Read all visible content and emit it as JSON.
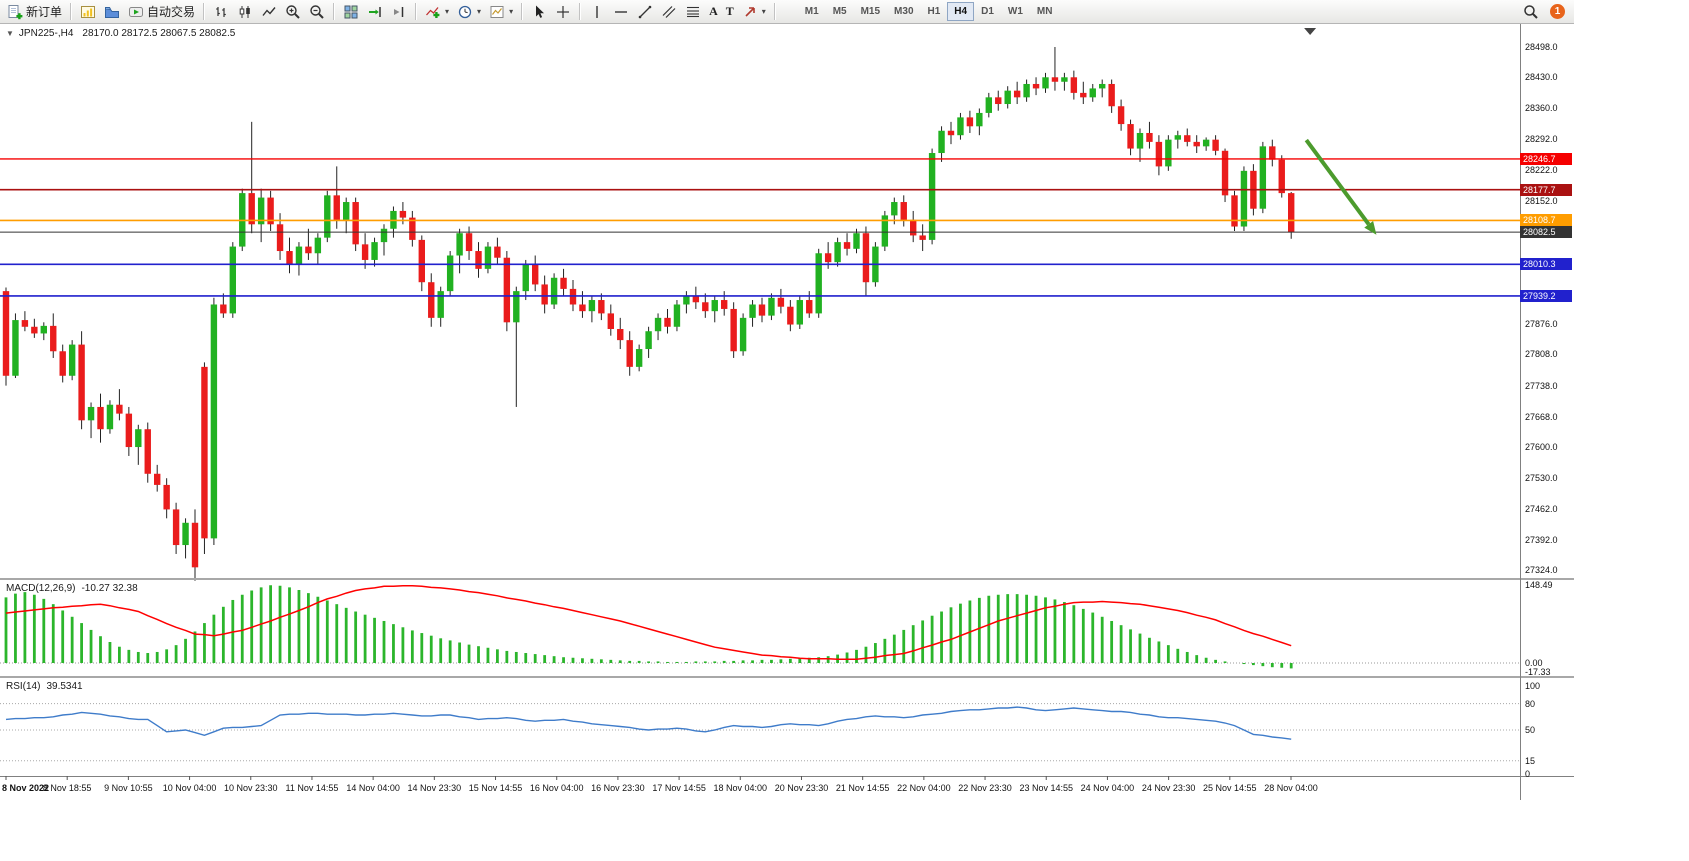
{
  "toolbar": {
    "new_order": "新订单",
    "autotrading": "自动交易",
    "text_tool": "A",
    "text_label_tool": "T",
    "timeframes": [
      "M1",
      "M5",
      "M15",
      "M30",
      "H1",
      "H4",
      "D1",
      "W1",
      "MN"
    ],
    "active_timeframe": "H4",
    "badge": "1",
    "badge_color": "#e8641b"
  },
  "icons": {
    "dropdown": "▾",
    "collapse": "▼"
  },
  "chart_header": {
    "symbol": "JPN225-,H4",
    "ohlc": "28170.0 28172.5 28067.5 28082.5"
  },
  "chart_data": {
    "type": "candlestick",
    "symbol": "JPN225-",
    "timeframe": "H4",
    "ohlc_current": {
      "open": 28170.0,
      "high": 28172.5,
      "low": 28067.5,
      "close": 28082.5
    },
    "price_axis": {
      "min": 27324,
      "max": 28498,
      "ticks": [
        "28498.0",
        "28430.0",
        "28360.0",
        "28292.0",
        "28222.0",
        "28152.0",
        "28082.0",
        "28012.0",
        "27944.0",
        "27876.0",
        "27808.0",
        "27738.0",
        "27668.0",
        "27600.0",
        "27530.0",
        "27462.0",
        "27392.0",
        "27324.0"
      ]
    },
    "time_labels": [
      "8 Nov 2022",
      "8 Nov 18:55",
      "9 Nov 10:55",
      "10 Nov 04:00",
      "10 Nov 23:30",
      "11 Nov 14:55",
      "14 Nov 04:00",
      "14 Nov 23:30",
      "15 Nov 14:55",
      "16 Nov 04:00",
      "16 Nov 23:30",
      "17 Nov 14:55",
      "18 Nov 04:00",
      "20 Nov 23:30",
      "21 Nov 14:55",
      "22 Nov 04:00",
      "22 Nov 23:30",
      "23 Nov 14:55",
      "24 Nov 04:00",
      "24 Nov 23:30",
      "25 Nov 14:55",
      "28 Nov 04:00"
    ],
    "levels": [
      {
        "price": 28246.7,
        "label": "28246.7",
        "color": "#f50000",
        "width": 1.4
      },
      {
        "price": 28177.7,
        "label": "28177.7",
        "color": "#aa1111",
        "width": 1.6
      },
      {
        "price": 28108.7,
        "label": "28108.7",
        "color": "#ff9d00",
        "width": 1.6
      },
      {
        "price": 28082.5,
        "label": "28082.5",
        "color": "#333333",
        "width": 1
      },
      {
        "price": 28010.3,
        "label": "28010.3",
        "color": "#2121cd",
        "width": 1.6
      },
      {
        "price": 27939.2,
        "label": "27939.2",
        "color": "#2121cd",
        "width": 1.6
      }
    ],
    "candles": [
      [
        27950,
        27958,
        27738,
        27760
      ],
      [
        27760,
        27900,
        27755,
        27885
      ],
      [
        27885,
        27905,
        27860,
        27870
      ],
      [
        27870,
        27888,
        27845,
        27855
      ],
      [
        27855,
        27880,
        27840,
        27872
      ],
      [
        27872,
        27900,
        27800,
        27815
      ],
      [
        27815,
        27830,
        27745,
        27760
      ],
      [
        27760,
        27840,
        27750,
        27830
      ],
      [
        27830,
        27860,
        27640,
        27660
      ],
      [
        27660,
        27700,
        27620,
        27690
      ],
      [
        27690,
        27720,
        27610,
        27640
      ],
      [
        27640,
        27705,
        27630,
        27695
      ],
      [
        27695,
        27730,
        27660,
        27675
      ],
      [
        27675,
        27690,
        27580,
        27600
      ],
      [
        27600,
        27650,
        27560,
        27640
      ],
      [
        27640,
        27655,
        27520,
        27540
      ],
      [
        27540,
        27560,
        27500,
        27515
      ],
      [
        27515,
        27530,
        27440,
        27460
      ],
      [
        27460,
        27475,
        27360,
        27380
      ],
      [
        27380,
        27440,
        27350,
        27430
      ],
      [
        27430,
        27460,
        27300,
        27330
      ],
      [
        27780,
        27790,
        27360,
        27395
      ],
      [
        27395,
        27935,
        27380,
        27920
      ],
      [
        27920,
        27945,
        27890,
        27900
      ],
      [
        27900,
        28060,
        27890,
        28050
      ],
      [
        28050,
        28180,
        28040,
        28170
      ],
      [
        28170,
        28330,
        28080,
        28100
      ],
      [
        28100,
        28180,
        28060,
        28160
      ],
      [
        28160,
        28175,
        28085,
        28100
      ],
      [
        28100,
        28125,
        28020,
        28040
      ],
      [
        28040,
        28070,
        27990,
        28010
      ],
      [
        28010,
        28060,
        27985,
        28050
      ],
      [
        28050,
        28090,
        28020,
        28035
      ],
      [
        28035,
        28080,
        28010,
        28070
      ],
      [
        28070,
        28175,
        28060,
        28165
      ],
      [
        28165,
        28230,
        28090,
        28110
      ],
      [
        28110,
        28160,
        28080,
        28150
      ],
      [
        28150,
        28160,
        28040,
        28055
      ],
      [
        28055,
        28080,
        28000,
        28020
      ],
      [
        28020,
        28070,
        28005,
        28060
      ],
      [
        28060,
        28100,
        28030,
        28090
      ],
      [
        28090,
        28140,
        28070,
        28130
      ],
      [
        28130,
        28150,
        28100,
        28115
      ],
      [
        28115,
        28130,
        28050,
        28065
      ],
      [
        28065,
        28075,
        27950,
        27970
      ],
      [
        27970,
        27990,
        27870,
        27890
      ],
      [
        27890,
        27960,
        27870,
        27950
      ],
      [
        27950,
        28040,
        27940,
        28030
      ],
      [
        28030,
        28090,
        27990,
        28080
      ],
      [
        28080,
        28095,
        28020,
        28040
      ],
      [
        28040,
        28060,
        27980,
        28000
      ],
      [
        28000,
        28060,
        27990,
        28050
      ],
      [
        28050,
        28070,
        28010,
        28025
      ],
      [
        28025,
        28040,
        27860,
        27880
      ],
      [
        27880,
        27960,
        27690,
        27950
      ],
      [
        27950,
        28020,
        27930,
        28010
      ],
      [
        28010,
        28030,
        27950,
        27965
      ],
      [
        27965,
        27985,
        27900,
        27920
      ],
      [
        27920,
        27990,
        27910,
        27980
      ],
      [
        27980,
        28000,
        27940,
        27955
      ],
      [
        27955,
        27975,
        27905,
        27920
      ],
      [
        27920,
        27950,
        27890,
        27905
      ],
      [
        27905,
        27940,
        27880,
        27930
      ],
      [
        27930,
        27945,
        27885,
        27900
      ],
      [
        27900,
        27920,
        27850,
        27865
      ],
      [
        27865,
        27890,
        27820,
        27840
      ],
      [
        27840,
        27860,
        27760,
        27780
      ],
      [
        27780,
        27830,
        27770,
        27820
      ],
      [
        27820,
        27870,
        27800,
        27860
      ],
      [
        27860,
        27900,
        27840,
        27890
      ],
      [
        27890,
        27910,
        27855,
        27870
      ],
      [
        27870,
        27930,
        27860,
        27920
      ],
      [
        27920,
        27950,
        27900,
        27940
      ],
      [
        27940,
        27960,
        27910,
        27925
      ],
      [
        27925,
        27945,
        27890,
        27905
      ],
      [
        27905,
        27940,
        27880,
        27930
      ],
      [
        27930,
        27950,
        27895,
        27910
      ],
      [
        27910,
        27925,
        27800,
        27815
      ],
      [
        27815,
        27900,
        27805,
        27890
      ],
      [
        27890,
        27930,
        27870,
        27920
      ],
      [
        27920,
        27935,
        27880,
        27895
      ],
      [
        27895,
        27945,
        27885,
        27935
      ],
      [
        27935,
        27955,
        27900,
        27915
      ],
      [
        27915,
        27930,
        27860,
        27875
      ],
      [
        27875,
        27940,
        27865,
        27930
      ],
      [
        27930,
        27950,
        27890,
        27900
      ],
      [
        27900,
        28045,
        27890,
        28035
      ],
      [
        28035,
        28060,
        28000,
        28015
      ],
      [
        28015,
        28070,
        28005,
        28060
      ],
      [
        28060,
        28080,
        28030,
        28045
      ],
      [
        28045,
        28090,
        28035,
        28080
      ],
      [
        28080,
        28095,
        27940,
        27970
      ],
      [
        27970,
        28060,
        27960,
        28050
      ],
      [
        28050,
        28130,
        28040,
        28120
      ],
      [
        28120,
        28160,
        28100,
        28150
      ],
      [
        28150,
        28165,
        28095,
        28110
      ],
      [
        28110,
        28130,
        28060,
        28075
      ],
      [
        28075,
        28100,
        28040,
        28065
      ],
      [
        28065,
        28270,
        28055,
        28260
      ],
      [
        28260,
        28320,
        28240,
        28310
      ],
      [
        28310,
        28330,
        28280,
        28300
      ],
      [
        28300,
        28350,
        28290,
        28340
      ],
      [
        28340,
        28355,
        28305,
        28320
      ],
      [
        28320,
        28360,
        28300,
        28350
      ],
      [
        28350,
        28395,
        28340,
        28385
      ],
      [
        28385,
        28400,
        28355,
        28370
      ],
      [
        28370,
        28410,
        28360,
        28400
      ],
      [
        28400,
        28420,
        28370,
        28385
      ],
      [
        28385,
        28425,
        28375,
        28415
      ],
      [
        28415,
        28430,
        28390,
        28405
      ],
      [
        28405,
        28440,
        28395,
        28430
      ],
      [
        28430,
        28498,
        28400,
        28420
      ],
      [
        28420,
        28440,
        28400,
        28430
      ],
      [
        28430,
        28445,
        28380,
        28395
      ],
      [
        28395,
        28420,
        28370,
        28385
      ],
      [
        28385,
        28415,
        28375,
        28405
      ],
      [
        28405,
        28425,
        28385,
        28415
      ],
      [
        28415,
        28425,
        28350,
        28365
      ],
      [
        28365,
        28380,
        28310,
        28325
      ],
      [
        28325,
        28335,
        28255,
        28270
      ],
      [
        28270,
        28315,
        28240,
        28305
      ],
      [
        28305,
        28330,
        28270,
        28285
      ],
      [
        28285,
        28300,
        28210,
        28230
      ],
      [
        28230,
        28300,
        28220,
        28290
      ],
      [
        28290,
        28310,
        28270,
        28300
      ],
      [
        28300,
        28315,
        28275,
        28285
      ],
      [
        28285,
        28300,
        28260,
        28275
      ],
      [
        28275,
        28295,
        28265,
        28290
      ],
      [
        28290,
        28300,
        28255,
        28265
      ],
      [
        28265,
        28270,
        28150,
        28165
      ],
      [
        28165,
        28175,
        28085,
        28095
      ],
      [
        28095,
        28230,
        28085,
        28220
      ],
      [
        28220,
        28235,
        28120,
        28135
      ],
      [
        28135,
        28285,
        28125,
        28275
      ],
      [
        28275,
        28290,
        28230,
        28245
      ],
      [
        28245,
        28255,
        28160,
        28170
      ],
      [
        28170,
        28172.5,
        28067.5,
        28082.5
      ]
    ],
    "indicators": {
      "macd": {
        "title": "MACD(12,26,9)",
        "values_text": "-10.27 32.38",
        "axis_labels": [
          "148.49",
          "0.00",
          "-17.33"
        ],
        "axis_values": [
          148.49,
          0,
          -17.33
        ],
        "histogram": [
          125,
          132,
          135,
          130,
          122,
          112,
          100,
          88,
          76,
          63,
          51,
          40,
          31,
          25,
          21,
          19,
          21,
          26,
          34,
          46,
          60,
          76,
          92,
          107,
          120,
          130,
          138,
          144,
          148,
          147,
          144,
          139,
          133,
          126,
          119,
          112,
          105,
          98,
          92,
          86,
          80,
          74,
          68,
          62,
          57,
          52,
          47,
          43,
          39,
          35,
          32,
          29,
          26,
          23,
          21,
          19,
          17,
          15,
          13,
          11,
          10,
          9,
          8,
          7,
          6,
          5,
          4,
          4,
          3,
          3,
          2,
          2,
          2,
          3,
          3,
          3,
          4,
          4,
          5,
          5,
          6,
          6,
          7,
          8,
          9,
          10,
          11,
          13,
          16,
          20,
          25,
          31,
          38,
          46,
          54,
          63,
          72,
          81,
          90,
          98,
          106,
          113,
          119,
          124,
          128,
          130,
          131,
          131,
          130,
          128,
          125,
          121,
          116,
          110,
          103,
          96,
          88,
          80,
          72,
          64,
          56,
          48,
          41,
          34,
          27,
          21,
          15,
          10,
          6,
          3,
          0,
          -2,
          -4,
          -6,
          -8,
          -9,
          -10.3
        ],
        "signal": [
          95,
          97,
          99,
          101,
          103,
          105,
          106,
          108,
          109,
          111,
          112,
          109,
          105,
          102,
          98,
          90,
          83,
          75,
          68,
          62,
          55,
          54,
          52,
          55,
          59,
          62,
          68,
          74,
          80,
          87,
          93,
          100,
          107,
          115,
          122,
          127,
          133,
          138,
          141,
          143,
          146,
          146,
          147,
          147,
          146,
          144,
          143,
          141,
          139,
          136,
          134,
          131,
          128,
          124,
          121,
          118,
          114,
          111,
          107,
          104,
          100,
          96,
          92,
          88,
          84,
          80,
          75,
          70,
          65,
          60,
          55,
          50,
          45,
          40,
          35,
          30,
          27,
          24,
          21,
          18,
          15,
          14,
          12,
          11,
          9,
          8,
          8,
          8,
          7,
          7,
          7,
          9,
          11,
          14,
          16,
          18,
          23,
          29,
          34,
          40,
          45,
          52,
          59,
          66,
          73,
          80,
          85,
          90,
          95,
          100,
          105,
          108,
          112,
          115,
          116,
          116,
          117,
          116,
          115,
          113,
          112,
          109,
          106,
          103,
          100,
          96,
          91,
          87,
          82,
          75,
          69,
          62,
          56,
          51,
          45,
          39,
          33
        ]
      },
      "rsi": {
        "title": "RSI(14)",
        "value_text": "39.5341",
        "axis_labels": [
          "100",
          "80",
          "50",
          "15",
          "0"
        ],
        "axis_values": [
          100,
          80,
          50,
          15,
          0
        ],
        "dotted_levels": [
          80,
          50,
          15
        ],
        "values": [
          62,
          63,
          63,
          64,
          64,
          65,
          67,
          68,
          70,
          69,
          68,
          66,
          65,
          63,
          62,
          62,
          55,
          48,
          49,
          50,
          47,
          44,
          48,
          52,
          53,
          53,
          54,
          55,
          61,
          67,
          68,
          68,
          69,
          69,
          68,
          68,
          68,
          67,
          67,
          68,
          68,
          69,
          68,
          67,
          66,
          66,
          67,
          67,
          65,
          64,
          62,
          63,
          63,
          64,
          63,
          61,
          60,
          61,
          61,
          62,
          60,
          59,
          57,
          56,
          55,
          54,
          53,
          51,
          50,
          51,
          51,
          52,
          51,
          49,
          48,
          50,
          53,
          55,
          54,
          54,
          53,
          54,
          56,
          57,
          56,
          56,
          55,
          57,
          60,
          62,
          63,
          65,
          66,
          65,
          65,
          64,
          65,
          67,
          68,
          69,
          71,
          72,
          73,
          73,
          74,
          75,
          75,
          76,
          75,
          73,
          72,
          73,
          74,
          75,
          74,
          73,
          72,
          71,
          71,
          70,
          68,
          67,
          65,
          64,
          64,
          63,
          62,
          61,
          60,
          58,
          55,
          50,
          45,
          44,
          42,
          41,
          39.5
        ]
      }
    },
    "annotation_arrow": {
      "from_bar": 137.6,
      "from_price": 28289,
      "to_bar": 144.2,
      "to_price": 28100,
      "color": "#4c9b2d"
    },
    "shift_marker_bar": 138,
    "style": {
      "bull_color": "#21b121",
      "bear_color": "#ea1c1c",
      "wick_color": "#222222",
      "macd_hist_color": "#2bb52b",
      "macd_signal_color": "#ff0000",
      "rsi_color": "#3f7cca",
      "background": "#ffffff"
    }
  }
}
